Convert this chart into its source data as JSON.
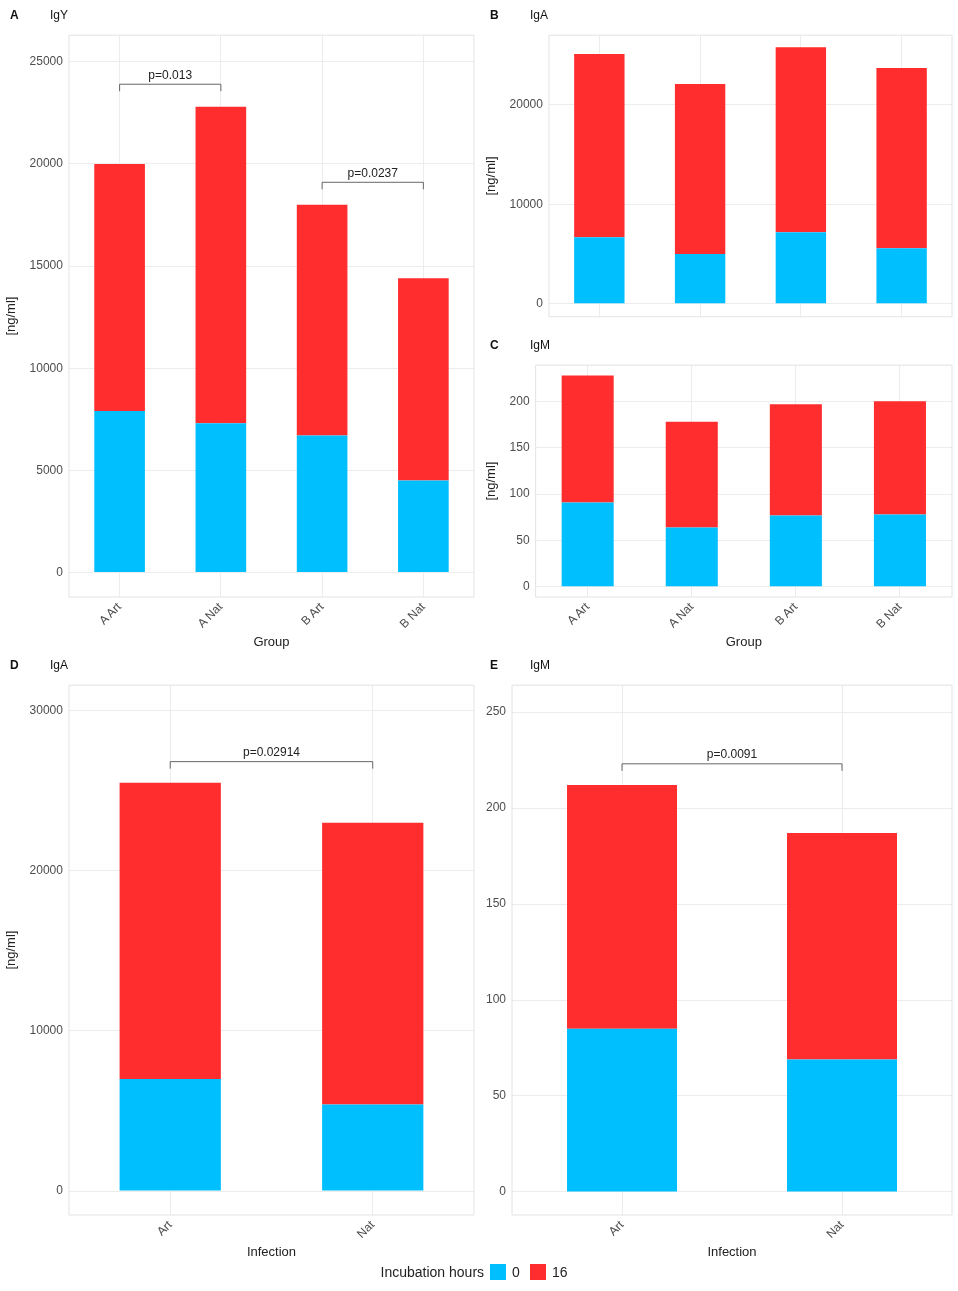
{
  "chart_data": [
    {
      "type": "bar",
      "title": "A",
      "subtitle": "IgY",
      "xlabel": "Group",
      "ylabel": "[ng/ml]",
      "categories": [
        "A Art",
        "A Nat",
        "B Art",
        "B Nat"
      ],
      "stacked": true,
      "series": [
        {
          "color": "#00bfff",
          "values": [
            7900,
            7300,
            6700,
            4500
          ]
        },
        {
          "color": "#ff2d2d",
          "values": [
            12100,
            15500,
            11300,
            9900
          ]
        }
      ],
      "ylim": [
        -1200,
        26300
      ],
      "yticks": [
        0,
        5000,
        10000,
        15000,
        20000,
        25000
      ],
      "grid": true,
      "annotations": [
        "p=0.013",
        "p=0.0237"
      ]
    },
    {
      "type": "bar",
      "title": "B",
      "subtitle": "IgA",
      "ylabel": "[ng/ml]",
      "categories": [
        null,
        null,
        null,
        null
      ],
      "stacked": true,
      "series": [
        {
          "color": "#00bfff",
          "values": [
            6700,
            5000,
            7200,
            5600
          ]
        },
        {
          "color": "#ff2d2d",
          "values": [
            18400,
            17100,
            18600,
            18100
          ]
        }
      ],
      "ylim": [
        -1300,
        27000
      ],
      "yticks": [
        0,
        10000,
        20000
      ],
      "grid": true,
      "tick_labels": "y"
    },
    {
      "type": "bar",
      "title": "C",
      "subtitle": "IgM",
      "xlabel": "Group",
      "ylabel": "[ng/ml]",
      "categories": [
        "A Art",
        "A Nat",
        "B Art",
        "B Nat"
      ],
      "stacked": true,
      "series": [
        {
          "color": "#00bfff",
          "values": [
            91,
            64,
            77,
            78
          ]
        },
        {
          "color": "#ff2d2d",
          "values": [
            137,
            114,
            120,
            122
          ]
        }
      ],
      "ylim": [
        -11,
        239
      ],
      "yticks": [
        0,
        50,
        100,
        150,
        200
      ],
      "grid": true
    },
    {
      "type": "bar",
      "title": "D",
      "subtitle": "IgA",
      "xlabel": "Infection",
      "ylabel": "[ng/ml]",
      "categories": [
        "Art",
        "Nat"
      ],
      "stacked": true,
      "series": [
        {
          "color": "#00bfff",
          "values": [
            7000,
            5400
          ]
        },
        {
          "color": "#ff2d2d",
          "values": [
            18500,
            17600
          ]
        }
      ],
      "ylim": [
        -1500,
        31600
      ],
      "yticks": [
        0,
        10000,
        20000,
        30000
      ],
      "grid": true,
      "annotations": [
        "p=0.02914"
      ]
    },
    {
      "type": "bar",
      "title": "E",
      "subtitle": "IgM",
      "xlabel": "Infection",
      "categories": [
        "Art",
        "Nat"
      ],
      "stacked": true,
      "legend": "bottom",
      "legend_title": "Incubation hours",
      "series": [
        {
          "name": "0",
          "color": "#00bfff",
          "values": [
            85,
            69
          ]
        },
        {
          "name": "16",
          "color": "#ff2d2d",
          "values": [
            127,
            118
          ]
        }
      ],
      "ylim": [
        -12,
        264
      ],
      "yticks": [
        0,
        50,
        100,
        150,
        200,
        250
      ],
      "grid": true,
      "annotations": [
        "p=0.0091"
      ]
    }
  ]
}
